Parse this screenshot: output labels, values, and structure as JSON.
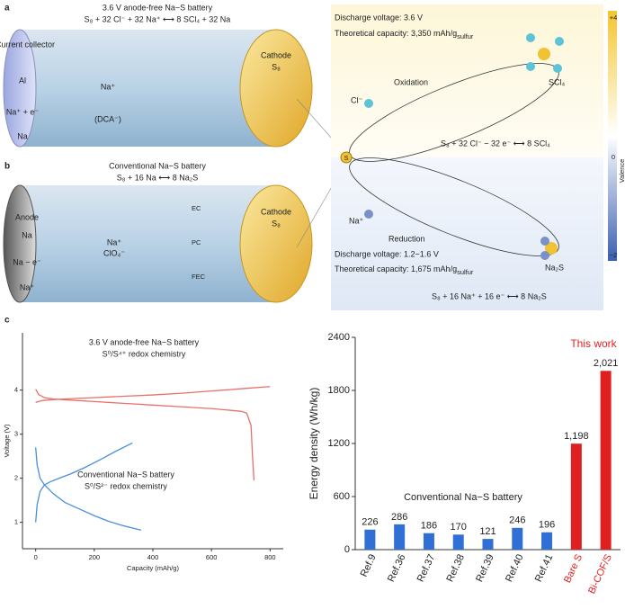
{
  "panel_a": {
    "label": "a",
    "title": "3.6 V anode-free Na−S battery",
    "equation": "S₈ + 32 Cl⁻ + 32 Na⁺ ⟷ 8 SCl₄ + 32 Na",
    "collector": "Current collector",
    "al": "Al",
    "reaction": "Na⁺ + e⁻",
    "product": "Na",
    "salt": "Na⁺",
    "anion": "(DCA⁻)",
    "cathode": "Cathode",
    "cathode_s": "S₈"
  },
  "panel_b": {
    "label": "b",
    "title": "Conventional Na−S battery",
    "equation": "S₈ + 16 Na ⟷ 8 Na₂S",
    "anode": "Anode",
    "na": "Na",
    "reaction": "Na − e⁻",
    "product": "Na⁺",
    "salt": "Na⁺",
    "anion": "ClO₄⁻",
    "solvents": [
      "EC",
      "PC",
      "FEC"
    ],
    "cathode": "Cathode",
    "cathode_s": "S₈"
  },
  "mechanism": {
    "discharge_top": "Discharge voltage: 3.6 V",
    "capacity_top": "Theoretical capacity: 3,350 mAh/g",
    "capacity_top_sub": "sulfur",
    "scl4": "SCl₄",
    "cl": "Cl⁻",
    "oxidation": "Oxidation",
    "equation_top": "S₈ + 32 Cl⁻ − 32 e⁻ ⟷ 8 SCl₄",
    "s": "S",
    "na": "Na⁺",
    "reduction": "Reduction",
    "discharge_bottom": "Discharge voltage: 1.2−1.6 V",
    "capacity_bottom": "Theoretical capacity: 1,675 mAh/g",
    "capacity_bottom_sub": "sulfur",
    "na2s": "Na₂S",
    "equation_bottom": "S₈ + 16 Na⁺ + 16 e⁻ ⟷ 8 Na₂S",
    "colorbar_title": "Valence",
    "colorbar_ticks": [
      "+4",
      "0",
      "−2"
    ]
  },
  "chart_data": [
    {
      "type": "line",
      "label": "c",
      "xlabel": "Capacity (mAh/g)",
      "ylabel": "Voltage (V)",
      "xlim": [
        -45,
        845
      ],
      "ylim": [
        0.4,
        5.3
      ],
      "xticks": [
        0,
        200,
        400,
        600,
        800
      ],
      "yticks": [
        1,
        2,
        3,
        4
      ],
      "annotations": [
        "3.6 V anode-free Na−S battery",
        "S⁰/S⁴⁺ redox chemistry",
        "Conventional Na−S battery",
        "S⁰/S²⁻ redox chemistry"
      ],
      "series": [
        {
          "color": "#e8706a",
          "x": [
            0,
            20,
            50,
            100,
            200,
            300,
            400,
            500,
            600,
            700,
            800
          ],
          "values": [
            3.72,
            3.76,
            3.78,
            3.8,
            3.83,
            3.86,
            3.89,
            3.93,
            3.98,
            4.03,
            4.08
          ]
        },
        {
          "color": "#e8706a",
          "x": [
            0,
            10,
            30,
            60,
            100,
            200,
            300,
            400,
            500,
            600,
            700,
            720,
            735,
            740,
            745
          ],
          "values": [
            4.02,
            3.9,
            3.83,
            3.8,
            3.78,
            3.74,
            3.7,
            3.66,
            3.62,
            3.58,
            3.52,
            3.48,
            3.2,
            2.5,
            1.95
          ]
        },
        {
          "color": "#4a8fdc",
          "x": [
            0,
            5,
            15,
            30,
            60,
            100,
            150,
            200,
            250,
            300,
            360
          ],
          "values": [
            2.7,
            2.3,
            2.0,
            1.85,
            1.65,
            1.45,
            1.3,
            1.15,
            1.02,
            0.92,
            0.82
          ]
        },
        {
          "color": "#4a8fdc",
          "x": [
            0,
            5,
            15,
            30,
            50,
            80,
            120,
            170,
            220,
            270,
            330
          ],
          "values": [
            1.0,
            1.4,
            1.7,
            1.85,
            1.92,
            2.0,
            2.1,
            2.25,
            2.42,
            2.6,
            2.8
          ]
        }
      ]
    },
    {
      "type": "bar",
      "ylabel": "Energy density (Wh/kg)",
      "ylim": [
        0,
        2400
      ],
      "yticks": [
        0,
        600,
        1200,
        1800,
        2400
      ],
      "categories": [
        "Ref.9",
        "Ref.36",
        "Ref.37",
        "Ref.38",
        "Ref.39",
        "Ref.40",
        "Ref.41",
        "Bare S",
        "Bi-COF/S"
      ],
      "values": [
        226,
        286,
        186,
        170,
        121,
        246,
        196,
        1198,
        2021
      ],
      "value_labels": [
        "226",
        "286",
        "186",
        "170",
        "121",
        "246",
        "196",
        "1,198",
        "2,021"
      ],
      "colors": [
        "#2f6fd6",
        "#2f6fd6",
        "#2f6fd6",
        "#2f6fd6",
        "#2f6fd6",
        "#2f6fd6",
        "#2f6fd6",
        "#e02020",
        "#e02020"
      ],
      "annotations": [
        "This work",
        "Conventional Na−S battery"
      ]
    }
  ]
}
